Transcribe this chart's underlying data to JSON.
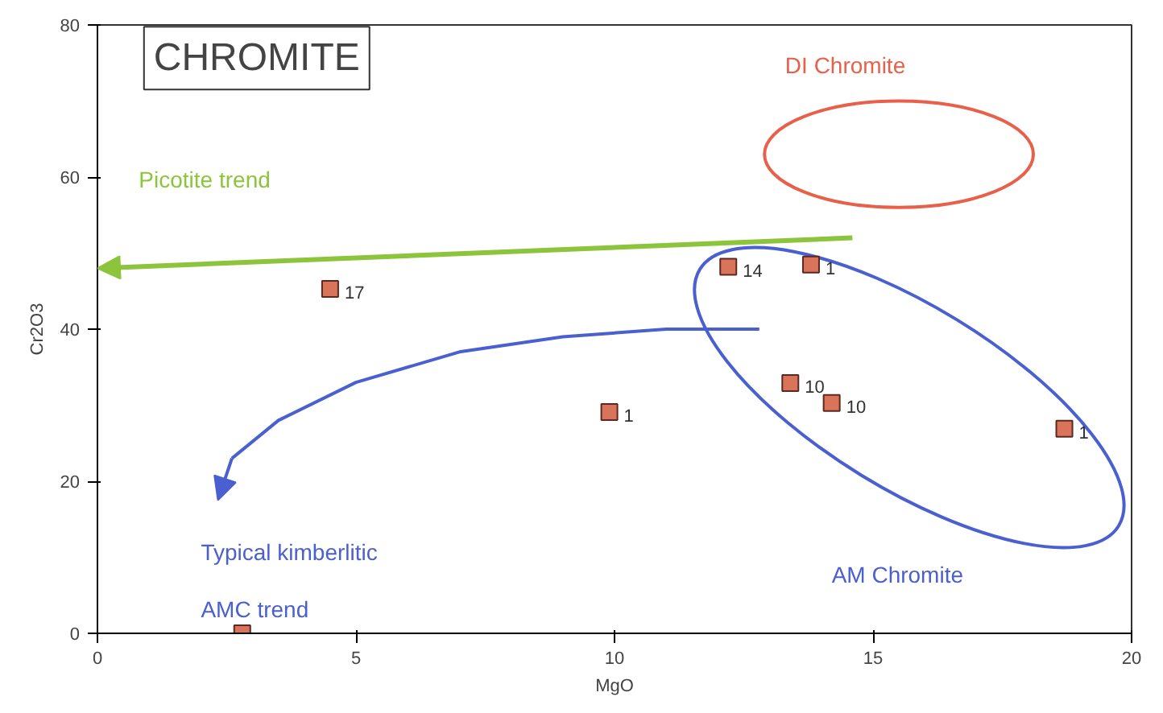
{
  "chart_data": {
    "type": "scatter",
    "title": "CHROMITE",
    "xlabel": "MgO",
    "ylabel": "Cr2O3",
    "x": [
      2.8,
      4.5,
      9.9,
      12.2,
      13.8,
      13.4,
      14.2,
      18.7
    ],
    "values": [
      0,
      45.3,
      29.1,
      48.2,
      48.5,
      32.9,
      30.3,
      26.9
    ],
    "color": "#d9735a",
    "marker": "square",
    "grid": false,
    "xlim": [
      0,
      20
    ],
    "ylim": [
      0,
      80
    ],
    "xticks": [
      0,
      5,
      10,
      15,
      20
    ],
    "yticks": [
      0,
      20,
      40,
      60,
      80
    ],
    "series": [
      {
        "type": "line",
        "marker": "none",
        "color": "#4a5fd0",
        "x": [
          12.8,
          11.0,
          9.0,
          7.0,
          5.0,
          3.5,
          2.6
        ],
        "values": [
          40,
          40,
          39,
          37,
          33,
          28,
          23
        ]
      }
    ],
    "annotations": [
      "DI Chromite",
      "Picotite trend",
      "Typical kimberlitic\nAMC trend",
      "AM Chromite",
      {
        "text": "17",
        "x": 4.5,
        "y": 45.3
      },
      {
        "text": "1",
        "x": 9.9,
        "y": 29.1
      },
      {
        "text": "14",
        "x": 12.2,
        "y": 48.2
      },
      {
        "text": "1",
        "x": 13.8,
        "y": 48.5
      },
      {
        "text": "10",
        "x": 13.4,
        "y": 32.9
      },
      {
        "text": "10",
        "x": 14.2,
        "y": 30.3
      },
      {
        "text": "1",
        "x": 18.7,
        "y": 26.9
      }
    ]
  }
}
